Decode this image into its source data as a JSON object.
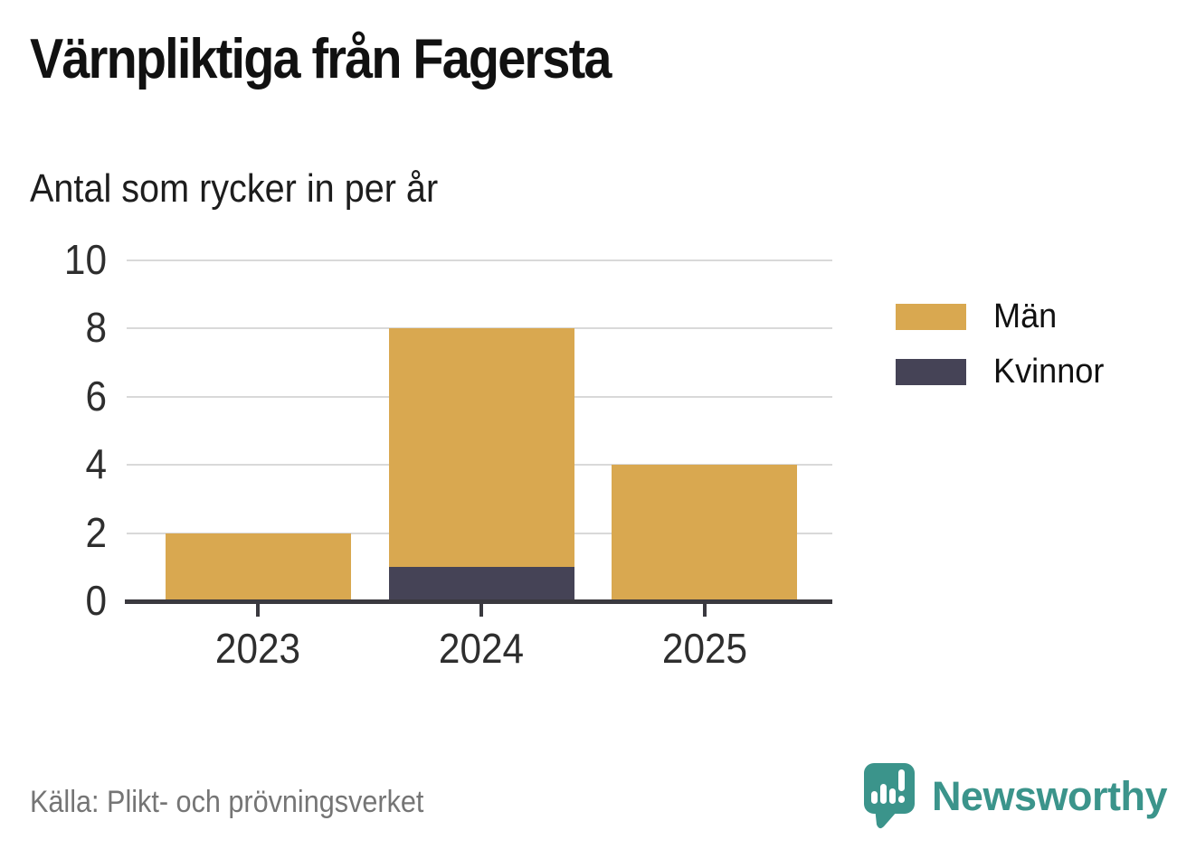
{
  "title": "Värnpliktiga från Fagersta",
  "subtitle": "Antal som rycker in per år",
  "source": "Källa: Plikt- och prövningsverket",
  "branding": {
    "name": "Newsworthy",
    "color": "#3b948b",
    "logo_icon": "speech-bubble-chart-icon"
  },
  "colors": {
    "men": "#d9a850",
    "women": "#454356",
    "axis": "#3a393f",
    "grid": "#d9d9d9",
    "tick_label": "#2e2e2e",
    "source_text": "#757575"
  },
  "legend": {
    "items": [
      {
        "label": "Män",
        "color": "#d9a850"
      },
      {
        "label": "Kvinnor",
        "color": "#454356"
      }
    ]
  },
  "chart_data": {
    "type": "bar",
    "stacked": true,
    "title": "Värnpliktiga från Fagersta",
    "subtitle": "Antal som rycker in per år",
    "categories": [
      "2023",
      "2024",
      "2025"
    ],
    "series": [
      {
        "name": "Män",
        "color": "#d9a850",
        "values": [
          2,
          7,
          4
        ]
      },
      {
        "name": "Kvinnor",
        "color": "#454356",
        "values": [
          0,
          1,
          0
        ]
      }
    ],
    "totals": [
      2,
      8,
      4
    ],
    "xlabel": "",
    "ylabel": "",
    "ylim": [
      0,
      10
    ],
    "yticks": [
      0,
      2,
      4,
      6,
      8,
      10
    ],
    "grid": true,
    "legend_position": "right",
    "source": "Källa: Plikt- och prövningsverket"
  }
}
